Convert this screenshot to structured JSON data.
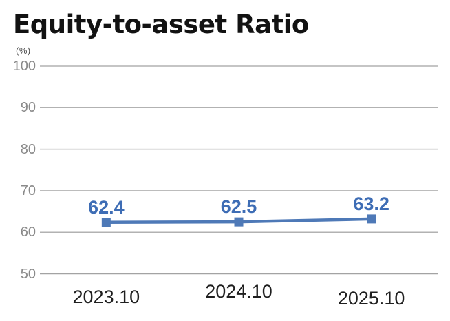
{
  "chart_data": {
    "type": "line",
    "title": "Equity-to-asset Ratio",
    "unit_label": "(%)",
    "categories": [
      "2023.10",
      "2024.10",
      "2025.10"
    ],
    "values": [
      62.4,
      62.5,
      63.2
    ],
    "data_labels": [
      "62.4",
      "62.5",
      "63.2"
    ],
    "ylim": [
      50,
      100
    ],
    "yticks": [
      100,
      90,
      80,
      70,
      60,
      50
    ],
    "grid": true,
    "legend_position": "none",
    "marker_style": "square",
    "colors": {
      "line": "#4e79b7",
      "marker": "#4e79b7",
      "data_label": "#3e6db5",
      "gridline": "#b2b2b2",
      "bottom_gridline": "#a3a3a3",
      "ytick_text": "#8a8a8a",
      "xtick_text": "#1f1f1f",
      "title_text": "#121212",
      "unit_text": "#4a4a4a",
      "background": "#ffffff"
    }
  }
}
